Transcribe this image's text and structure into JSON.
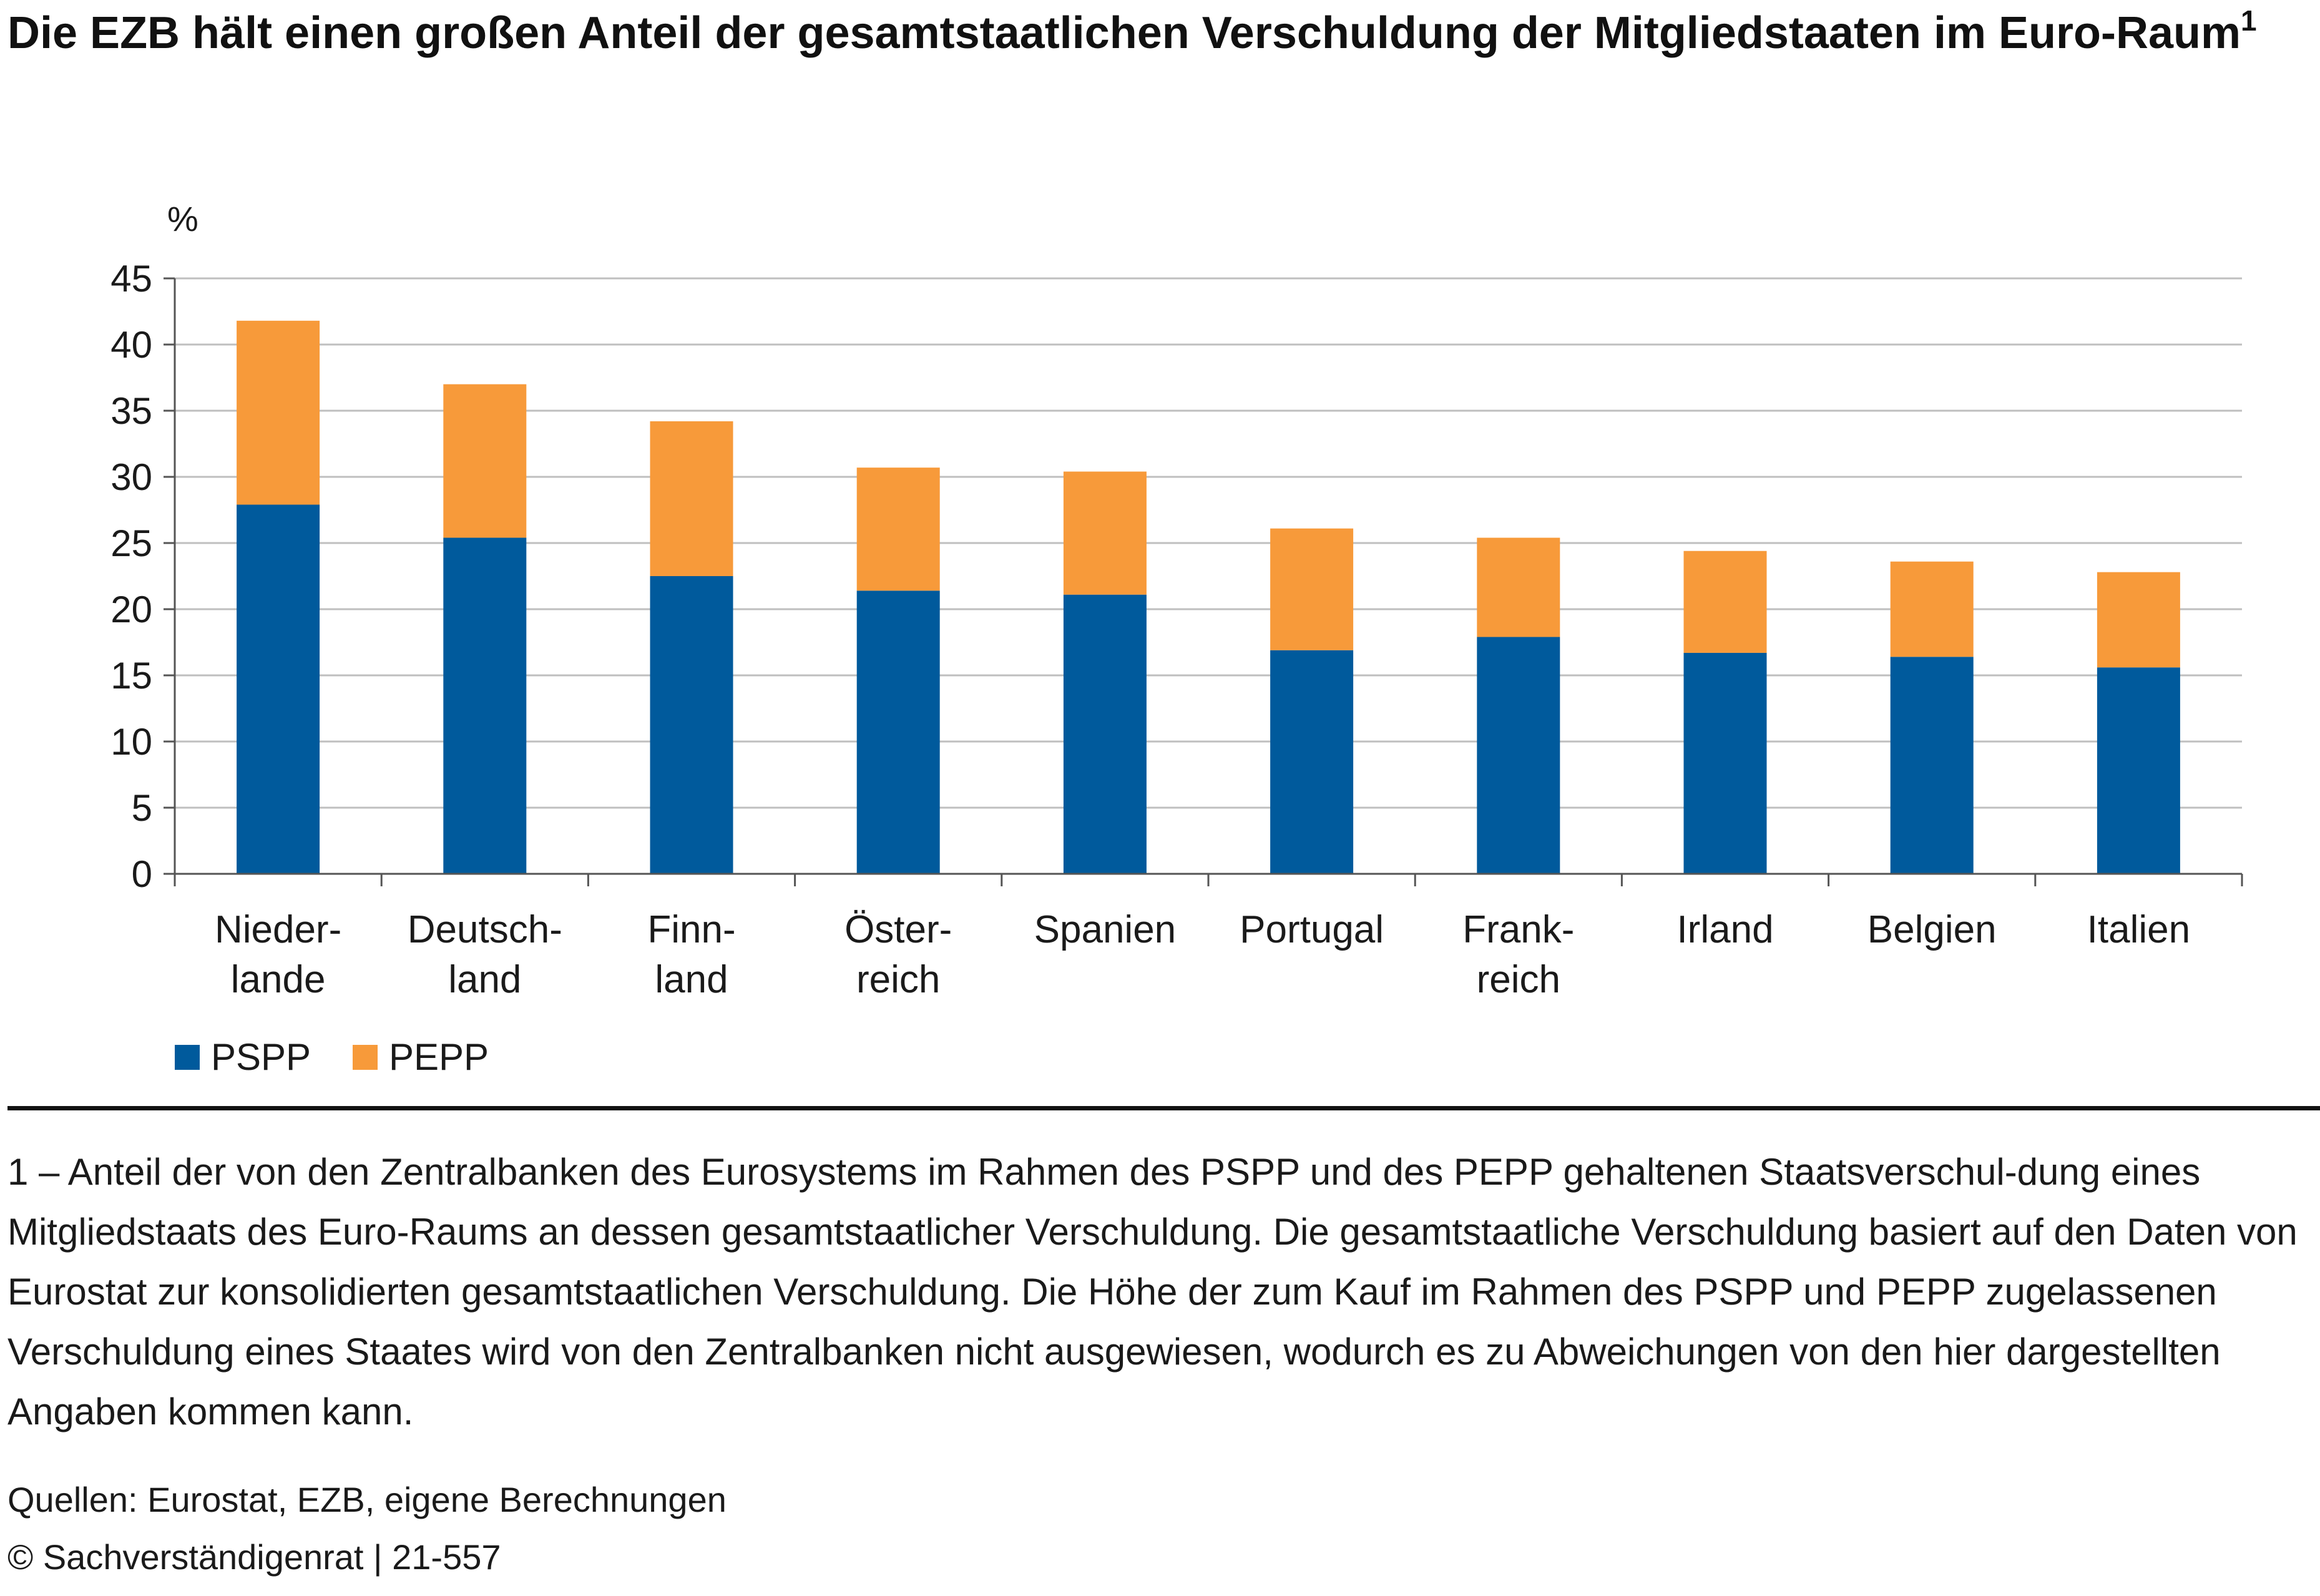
{
  "title": "Die EZB hält einen großen Anteil der gesamtstaatlichen Verschuldung der Mitgliedstaaten im Euro-Raum",
  "title_footnote_marker": "1",
  "colors": {
    "PSPP": "#005a9c",
    "PEPP": "#f79a3a",
    "grid": "#bfbfbf",
    "axis": "#555555"
  },
  "chart_data": {
    "type": "bar",
    "stacked": true,
    "unit_label": "%",
    "ylim": [
      0,
      45
    ],
    "yticks": [
      "0",
      "5",
      "10",
      "15",
      "20",
      "25",
      "30",
      "35",
      "40",
      "45"
    ],
    "grid": true,
    "legend_position": "bottom-left",
    "categories": [
      [
        "Nieder-",
        "lande"
      ],
      [
        "Deutsch-",
        "land"
      ],
      [
        "Finn-",
        "land"
      ],
      [
        "Öster-",
        "reich"
      ],
      [
        "Spanien"
      ],
      [
        "Portugal"
      ],
      [
        "Frank-",
        "reich"
      ],
      [
        "Irland"
      ],
      [
        "Belgien"
      ],
      [
        "Italien"
      ]
    ],
    "series": [
      {
        "name": "PSPP",
        "values": [
          27.9,
          25.4,
          22.5,
          21.4,
          21.1,
          16.9,
          17.9,
          16.7,
          16.4,
          15.6
        ]
      },
      {
        "name": "PEPP",
        "values": [
          13.9,
          11.6,
          11.7,
          9.3,
          9.3,
          9.2,
          7.5,
          7.7,
          7.2,
          7.2
        ]
      }
    ]
  },
  "footnote": "1 – Anteil der von den Zentralbanken des Eurosystems im Rahmen des PSPP und des PEPP gehaltenen Staatsverschul-dung eines Mitgliedstaats des Euro-Raums an dessen gesamtstaatlicher Verschuldung. Die gesamtstaatliche Verschuldung basiert auf den Daten von Eurostat zur konsolidierten gesamtstaatlichen Verschuldung. Die Höhe der zum Kauf im Rahmen des PSPP und PEPP zugelassenen Verschuldung eines Staates wird von den Zentralbanken nicht ausgewiesen, wodurch es zu Abweichungen von den hier dargestellten Angaben kommen kann.",
  "source": "Quellen: Eurostat, EZB, eigene Berechnungen",
  "copyright": "© Sachverständigenrat | 21-557"
}
